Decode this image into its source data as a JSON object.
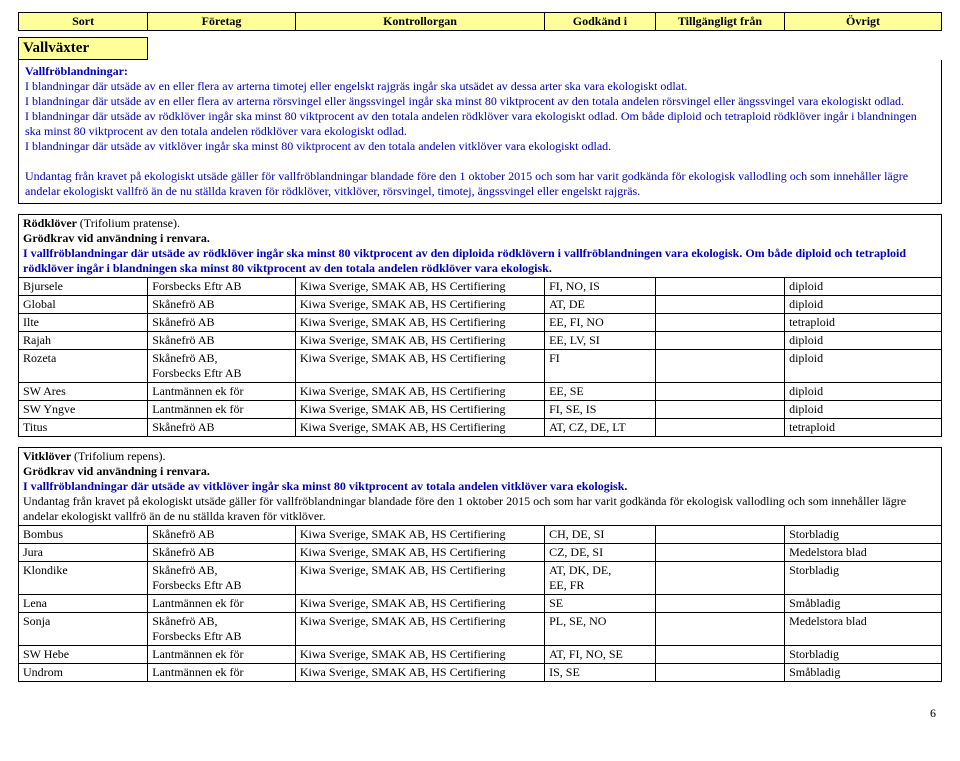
{
  "header": {
    "cols": [
      "Sort",
      "Företag",
      "Kontrollorgan",
      "Godkänd i",
      "Tillgängligt från",
      "Övrigt"
    ]
  },
  "section1": {
    "title": "Vallväxter",
    "intro_heading": "Vallfröblandningar:",
    "p1": "I blandningar där utsäde av en eller flera av arterna timotej eller engelskt rajgräs ingår ska utsädet av dessa arter ska vara ekologiskt odlat.",
    "p2": "I blandningar där utsäde av en eller flera av arterna rörsvingel eller ängssvingel ingår ska minst 80 viktprocent av den totala andelen rörsvingel eller ängssvingel vara ekologiskt odlad.",
    "p3": "I blandningar där utsäde av rödklöver ingår ska minst 80 viktprocent av den totala andelen rödklöver vara ekologiskt odlad. Om både diploid och tetraploid rödklöver ingår i blandningen ska minst 80 viktprocent av den totala andelen rödklöver vara ekologiskt odlad.",
    "p4": "I blandningar där utsäde av vitklöver ingår ska minst 80 viktprocent av den totala andelen vitklöver vara ekologiskt odlad.",
    "p5": "Undantag från kravet på ekologiskt utsäde gäller för vallfröblandningar blandade före den 1 oktober 2015 och som har varit godkända för ekologisk vallodling och som innehåller lägre andelar ekologiskt vallfrö än de nu ställda kraven för rödklöver, vitklöver, rörsvingel, timotej, ängssvingel eller engelskt rajgräs."
  },
  "rodklover": {
    "heading1": "Rödklöver (Trifolium pratense).",
    "heading1_prefix": "Rödklöver ",
    "heading1_suffix": "(Trifolium pratense).",
    "heading2": "Grödkrav vid användning i renvara.",
    "blue_line": "I vallfröblandningar där utsäde av rödklöver ingår ska minst 80 viktprocent av den diploida rödklövern i vallfröblandningen vara ekologisk. Om både diploid och tetraploid rödklöver ingår i blandningen ska minst 80 viktprocent av den totala andelen rödklöver vara ekologisk.",
    "rows": [
      {
        "sort": "Bjursele",
        "foretag": "Forsbecks Eftr AB",
        "kontroll": "Kiwa Sverige, SMAK AB, HS Certifiering",
        "godkand": "FI, NO, IS",
        "tillg": "",
        "ovrigt": "diploid"
      },
      {
        "sort": "Global",
        "foretag": "Skånefrö AB",
        "kontroll": "Kiwa Sverige, SMAK AB, HS Certifiering",
        "godkand": "AT, DE",
        "tillg": "",
        "ovrigt": "diploid"
      },
      {
        "sort": "Ilte",
        "foretag": "Skånefrö AB",
        "kontroll": "Kiwa Sverige, SMAK AB, HS Certifiering",
        "godkand": "EE, FI, NO",
        "tillg": "",
        "ovrigt": "tetraploid"
      },
      {
        "sort": "Rajah",
        "foretag": "Skånefrö AB",
        "kontroll": "Kiwa Sverige, SMAK AB, HS Certifiering",
        "godkand": "EE, LV, SI",
        "tillg": "",
        "ovrigt": "diploid"
      },
      {
        "sort": "Rozeta",
        "foretag": "Skånefrö AB,\nForsbecks Eftr AB",
        "kontroll": "Kiwa Sverige, SMAK AB, HS Certifiering",
        "godkand": "FI",
        "tillg": "",
        "ovrigt": "diploid"
      },
      {
        "sort": "SW Ares",
        "foretag": "Lantmännen ek för",
        "kontroll": "Kiwa Sverige, SMAK AB, HS Certifiering",
        "godkand": "EE, SE",
        "tillg": "",
        "ovrigt": "diploid"
      },
      {
        "sort": "SW Yngve",
        "foretag": "Lantmännen ek för",
        "kontroll": "Kiwa Sverige, SMAK AB, HS Certifiering",
        "godkand": "FI, SE, IS",
        "tillg": "",
        "ovrigt": "diploid"
      },
      {
        "sort": "Titus",
        "foretag": "Skånefrö AB",
        "kontroll": "Kiwa Sverige, SMAK AB, HS Certifiering",
        "godkand": "AT, CZ, DE, LT",
        "tillg": "",
        "ovrigt": "tetraploid"
      }
    ]
  },
  "vitklover": {
    "heading1_prefix": "Vitklöver ",
    "heading1_suffix": "(Trifolium repens).",
    "heading2": "Grödkrav vid användning i renvara.",
    "blue_line": "I vallfröblandningar där utsäde av vitklöver ingår ska minst 80 viktprocent av totala andelen vitklöver vara ekologisk.",
    "black_line": "Undantag från kravet på ekologiskt utsäde gäller för vallfröblandningar blandade före den 1 oktober 2015 och som har varit godkända för ekologisk vallodling och som innehåller lägre andelar ekologiskt vallfrö än de nu ställda kraven för vitklöver.",
    "rows": [
      {
        "sort": "Bombus",
        "foretag": "Skånefrö AB",
        "kontroll": "Kiwa Sverige, SMAK AB, HS Certifiering",
        "godkand": "CH, DE, SI",
        "tillg": "",
        "ovrigt": "Storbladig"
      },
      {
        "sort": "Jura",
        "foretag": "Skånefrö AB",
        "kontroll": "Kiwa Sverige, SMAK AB, HS Certifiering",
        "godkand": "CZ, DE, SI",
        "tillg": "",
        "ovrigt": "Medelstora blad"
      },
      {
        "sort": "Klondike",
        "foretag": "Skånefrö AB,\nForsbecks Eftr AB",
        "kontroll": "Kiwa Sverige, SMAK AB, HS Certifiering",
        "godkand": "AT, DK, DE,\nEE, FR",
        "tillg": "",
        "ovrigt": "Storbladig"
      },
      {
        "sort": "Lena",
        "foretag": "Lantmännen ek för",
        "kontroll": "Kiwa Sverige, SMAK AB, HS Certifiering",
        "godkand": "SE",
        "tillg": "",
        "ovrigt": "Småbladig"
      },
      {
        "sort": "Sonja",
        "foretag": "Skånefrö AB,\nForsbecks Eftr AB",
        "kontroll": "Kiwa Sverige, SMAK AB, HS Certifiering",
        "godkand": "PL, SE, NO",
        "tillg": "",
        "ovrigt": "Medelstora blad"
      },
      {
        "sort": "SW Hebe",
        "foretag": "Lantmännen ek för",
        "kontroll": "Kiwa Sverige, SMAK AB, HS Certifiering",
        "godkand": "AT, FI, NO, SE",
        "tillg": "",
        "ovrigt": "Storbladig"
      },
      {
        "sort": "Undrom",
        "foretag": "Lantmännen ek för",
        "kontroll": "Kiwa Sverige, SMAK AB, HS Certifiering",
        "godkand": "IS, SE",
        "tillg": "",
        "ovrigt": "Småbladig"
      }
    ]
  },
  "page_number": "6"
}
